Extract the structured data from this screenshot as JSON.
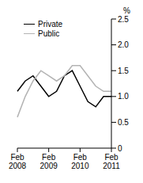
{
  "chart_data": {
    "type": "line",
    "y_label": "%",
    "categories": [
      "Feb 2008",
      null,
      null,
      null,
      "Feb 2009",
      null,
      null,
      null,
      "Feb 2010",
      null,
      null,
      null,
      "Feb 2011"
    ],
    "series": [
      {
        "name": "Private",
        "color": "#000000",
        "values": [
          1.1,
          1.3,
          1.4,
          1.2,
          1.0,
          1.1,
          1.4,
          1.5,
          1.2,
          0.9,
          0.8,
          1.0,
          1.0
        ]
      },
      {
        "name": "Public",
        "color": "#b3b3b3",
        "values": [
          0.6,
          1.0,
          1.3,
          1.5,
          1.4,
          1.3,
          1.4,
          1.6,
          1.6,
          1.4,
          1.2,
          1.1,
          1.1
        ]
      }
    ],
    "ylim": [
      0,
      2.5
    ],
    "yticks": [
      0,
      0.5,
      {
        "value": 1.0,
        "label": "1.0"
      },
      1.5,
      {
        "value": 2.0,
        "label": "2.0"
      },
      2.5
    ],
    "legend": "top-left"
  }
}
